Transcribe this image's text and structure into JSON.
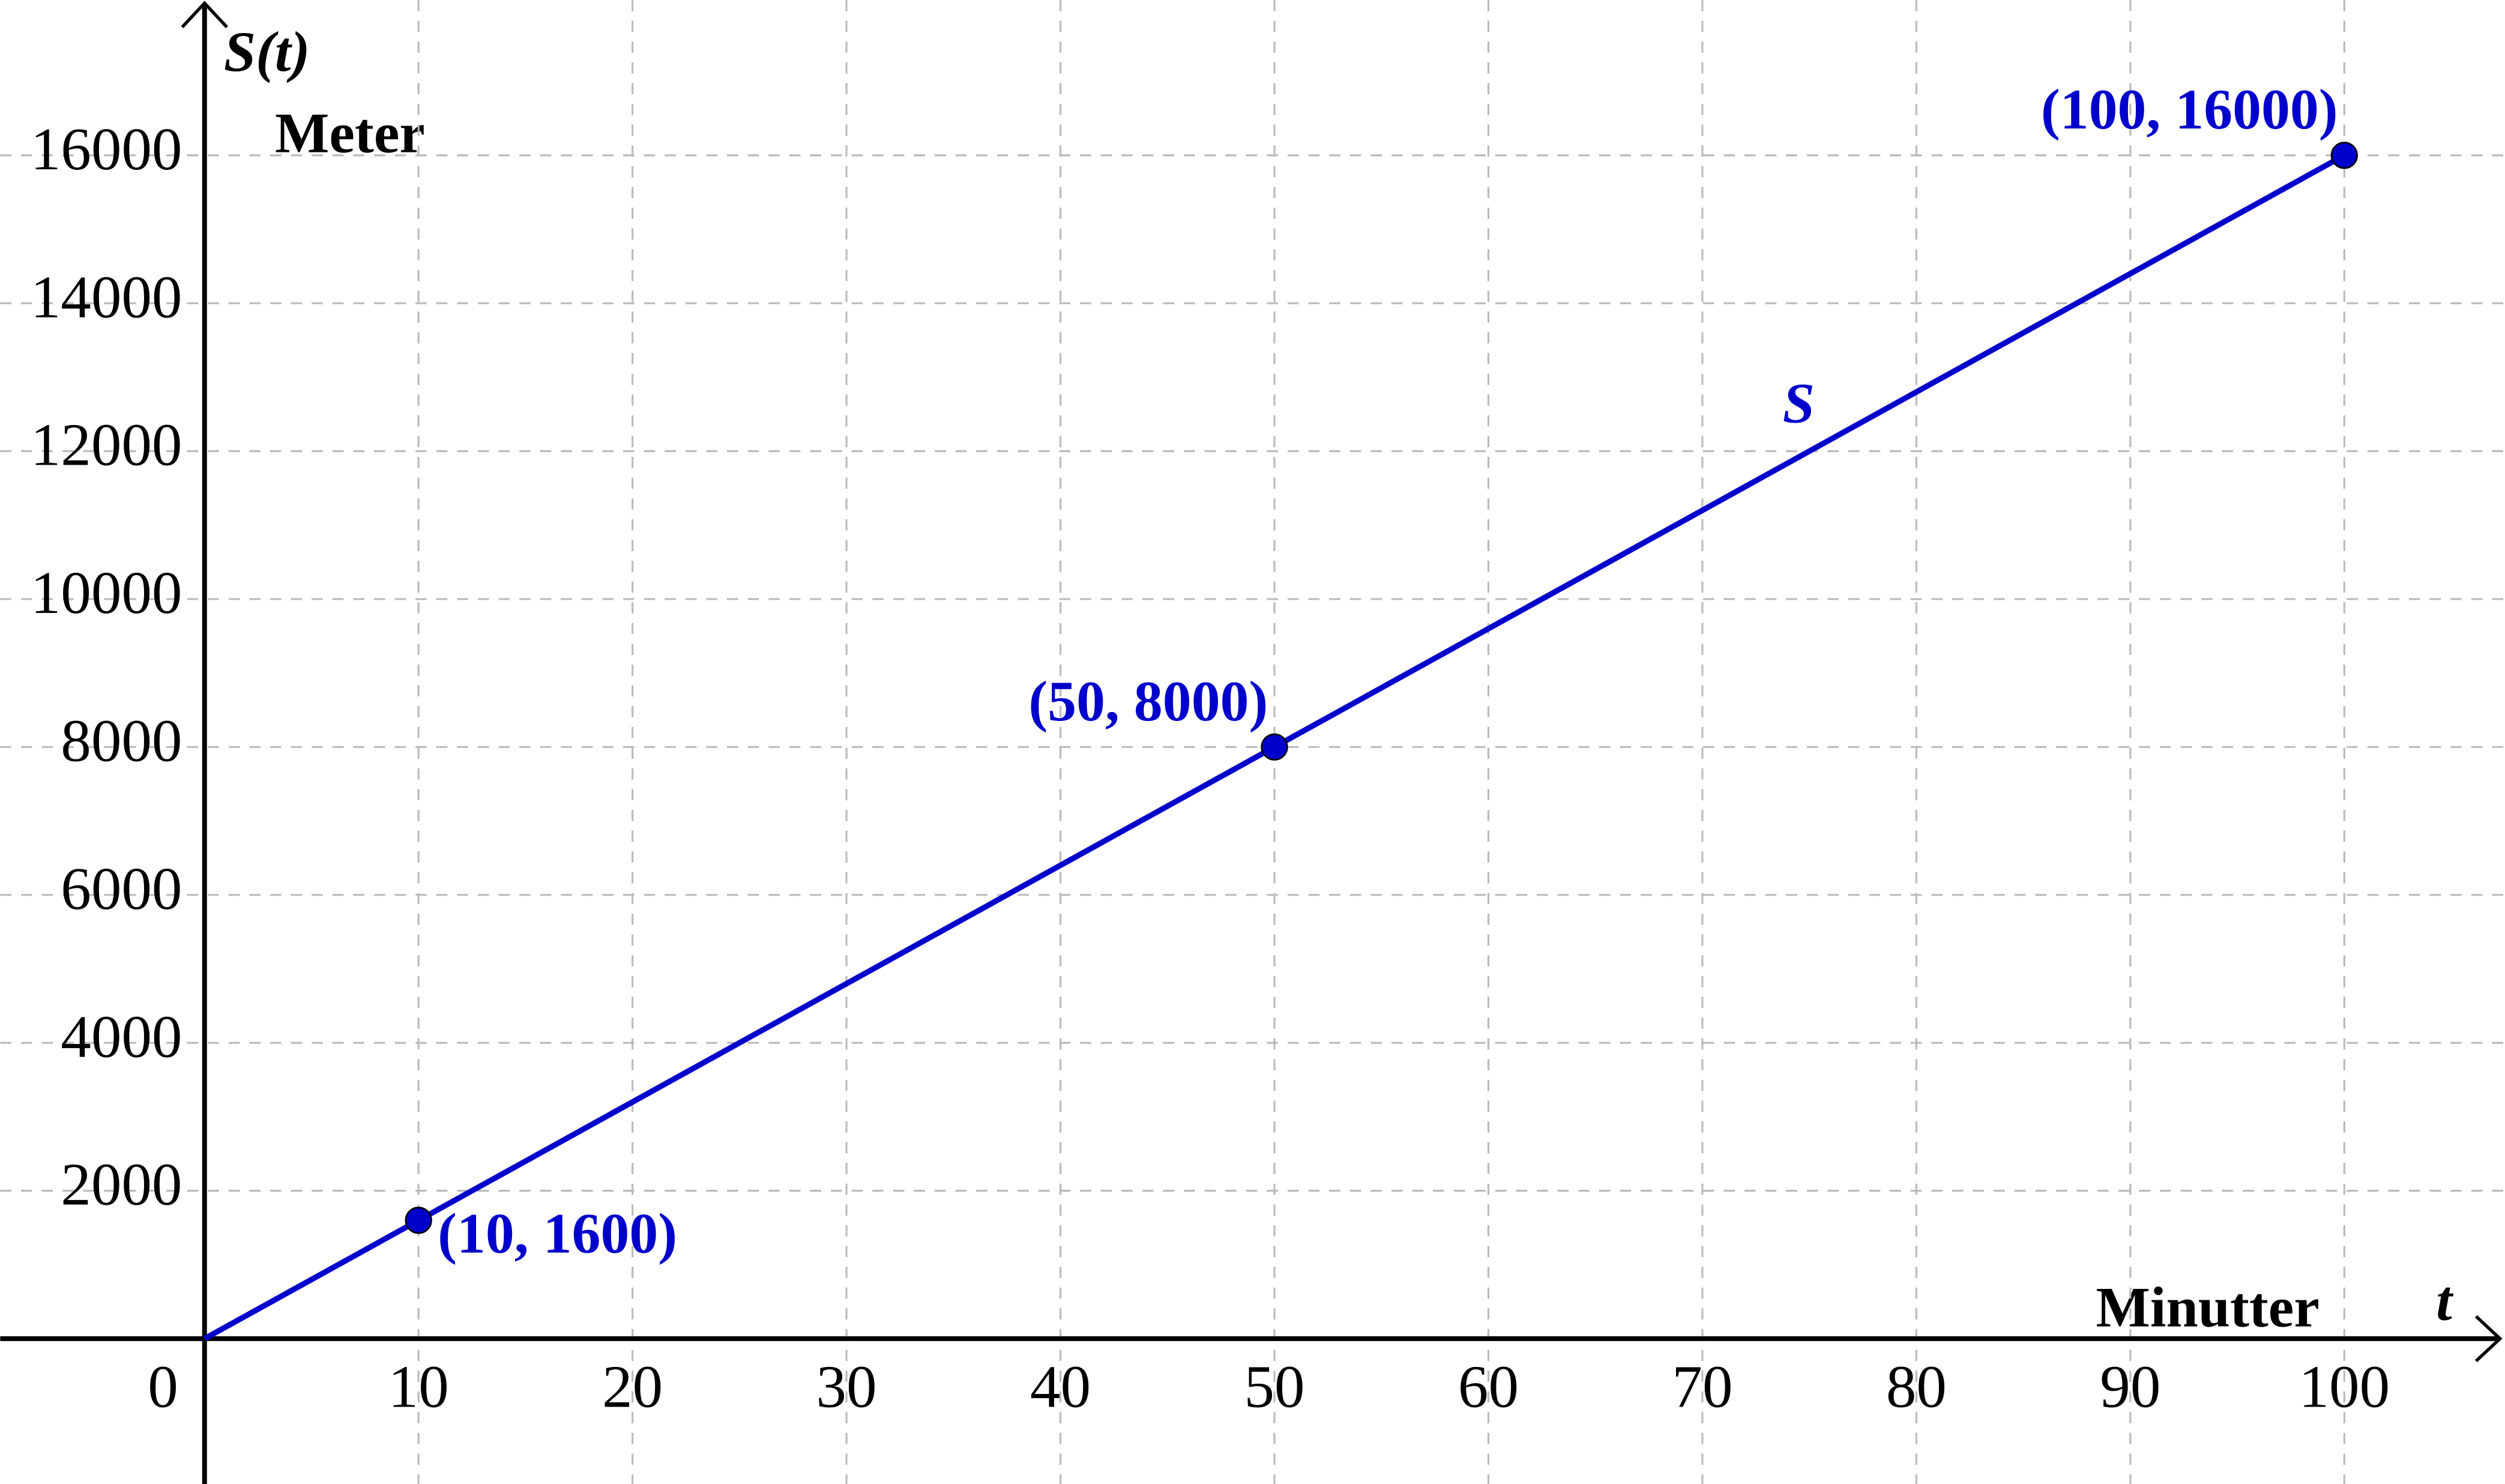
{
  "chart_data": {
    "type": "line",
    "y_label": "S(t)",
    "y_unit": "Meter",
    "x_label": "t",
    "x_unit": "Minutter",
    "x": [
      0,
      10,
      50,
      100
    ],
    "series": [
      {
        "name": "S",
        "color": "#0000cc",
        "values": [
          0,
          1600,
          8000,
          16000
        ]
      }
    ],
    "points": {
      "x": [
        10,
        50,
        100
      ],
      "values": [
        1600,
        8000,
        16000
      ],
      "labels": [
        "(10, 1600)",
        "(50, 8000)",
        "(100, 16000)"
      ]
    },
    "xlim": [
      -9.55,
      107.5
    ],
    "ylim": [
      -1965,
      18100
    ],
    "xticks": [
      0,
      10,
      20,
      30,
      40,
      50,
      60,
      70,
      80,
      90,
      100
    ],
    "yticks": [
      2000,
      4000,
      6000,
      8000,
      10000,
      12000,
      14000,
      16000
    ],
    "grid": true
  }
}
